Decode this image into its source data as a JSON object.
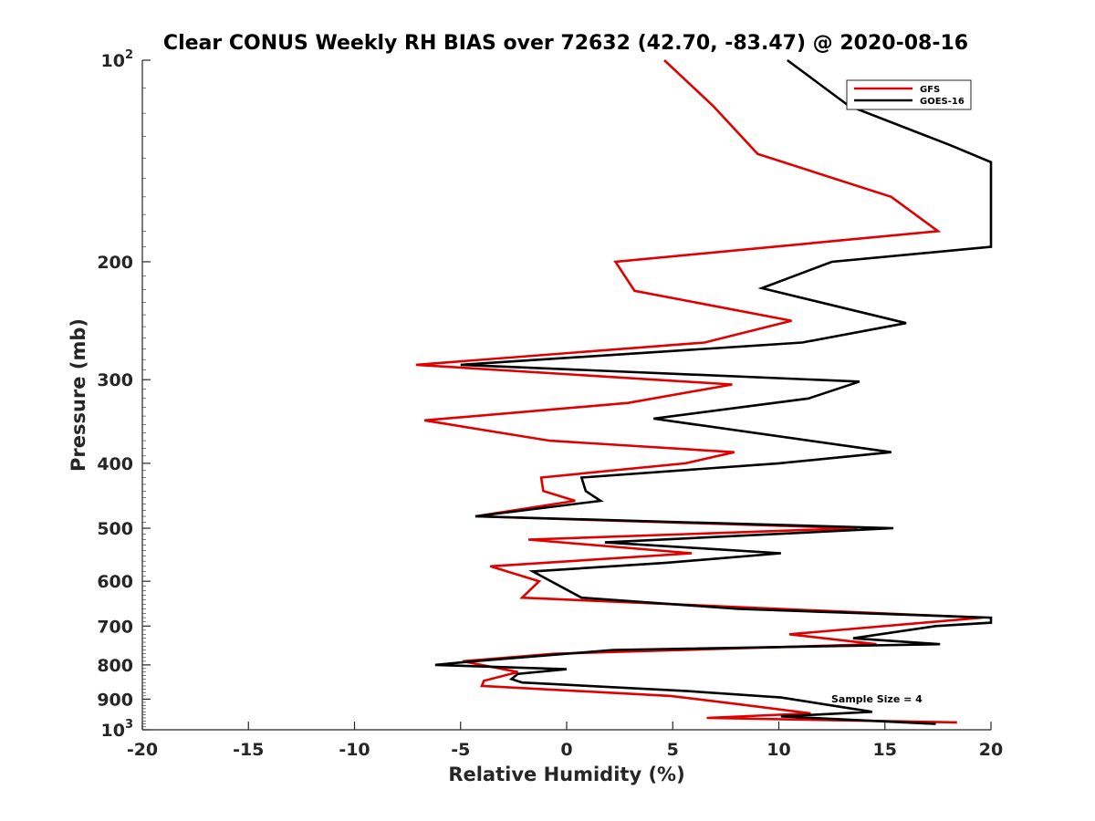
{
  "chart_data": {
    "type": "line",
    "title": "Clear CONUS Weekly RH BIAS over 72632 (42.70, -83.47) @ 2020-08-16",
    "xlabel": "Relative Humidity (%)",
    "ylabel": "Pressure (mb)",
    "xlim": [
      -20,
      20
    ],
    "ylim": [
      100,
      1000
    ],
    "yscale": "log",
    "y_reversed": true,
    "grid": false,
    "legend_position": "top-right",
    "x_ticks": [
      "-20",
      "-15",
      "-10",
      "-5",
      "0",
      "5",
      "10",
      "15",
      "20"
    ],
    "y_ticks": [
      {
        "value": 100,
        "base": "10",
        "exp": "2"
      },
      {
        "value": 200,
        "label": "200"
      },
      {
        "value": 300,
        "label": "300"
      },
      {
        "value": 400,
        "label": "400"
      },
      {
        "value": 500,
        "label": "500"
      },
      {
        "value": 600,
        "label": "600"
      },
      {
        "value": 700,
        "label": "700"
      },
      {
        "value": 800,
        "label": "800"
      },
      {
        "value": 900,
        "label": "900"
      },
      {
        "value": 1000,
        "base": "10",
        "exp": "3"
      }
    ],
    "annotation": "Sample Size = 4",
    "series": [
      {
        "name": "GFS",
        "color": "#e00000",
        "points": [
          {
            "x": 4.6,
            "y": 100
          },
          {
            "x": 6.9,
            "y": 117
          },
          {
            "x": 9.0,
            "y": 138
          },
          {
            "x": 15.3,
            "y": 160
          },
          {
            "x": 17.5,
            "y": 180
          },
          {
            "x": 2.3,
            "y": 200
          },
          {
            "x": 3.2,
            "y": 221
          },
          {
            "x": 10.6,
            "y": 245
          },
          {
            "x": 6.5,
            "y": 264
          },
          {
            "x": -7.1,
            "y": 285
          },
          {
            "x": 7.8,
            "y": 305
          },
          {
            "x": 2.9,
            "y": 325
          },
          {
            "x": -6.7,
            "y": 345
          },
          {
            "x": -0.8,
            "y": 370
          },
          {
            "x": 7.9,
            "y": 385
          },
          {
            "x": 5.6,
            "y": 400
          },
          {
            "x": -1.2,
            "y": 420
          },
          {
            "x": -1.1,
            "y": 440
          },
          {
            "x": 0.4,
            "y": 455
          },
          {
            "x": -4.3,
            "y": 480
          },
          {
            "x": 13.7,
            "y": 500
          },
          {
            "x": -1.8,
            "y": 520
          },
          {
            "x": 5.9,
            "y": 545
          },
          {
            "x": -3.6,
            "y": 570
          },
          {
            "x": -1.3,
            "y": 600
          },
          {
            "x": -2.1,
            "y": 635
          },
          {
            "x": 19.6,
            "y": 680
          },
          {
            "x": 10.5,
            "y": 720
          },
          {
            "x": 14.6,
            "y": 745
          },
          {
            "x": -0.6,
            "y": 770
          },
          {
            "x": -4.9,
            "y": 790
          },
          {
            "x": -2.3,
            "y": 820
          },
          {
            "x": -3.9,
            "y": 845
          },
          {
            "x": -4.0,
            "y": 860
          },
          {
            "x": 4.9,
            "y": 890
          },
          {
            "x": 8.0,
            "y": 915
          },
          {
            "x": 11.5,
            "y": 945
          },
          {
            "x": 6.6,
            "y": 960
          },
          {
            "x": 18.4,
            "y": 975
          }
        ]
      },
      {
        "name": "GOES-16",
        "color": "#000000",
        "points": [
          {
            "x": 10.4,
            "y": 100
          },
          {
            "x": 13.3,
            "y": 117
          },
          {
            "x": 18.1,
            "y": 134
          },
          {
            "x": 20.0,
            "y": 142
          },
          {
            "x": 20.0,
            "y": 190
          },
          {
            "x": 12.5,
            "y": 200
          },
          {
            "x": 9.2,
            "y": 219
          },
          {
            "x": 16.0,
            "y": 247
          },
          {
            "x": 11.1,
            "y": 264
          },
          {
            "x": -5.0,
            "y": 285
          },
          {
            "x": 13.8,
            "y": 302
          },
          {
            "x": 11.4,
            "y": 320
          },
          {
            "x": 4.1,
            "y": 343
          },
          {
            "x": 15.3,
            "y": 385
          },
          {
            "x": 10.0,
            "y": 400
          },
          {
            "x": 0.7,
            "y": 420
          },
          {
            "x": 0.9,
            "y": 440
          },
          {
            "x": 1.6,
            "y": 455
          },
          {
            "x": -4.3,
            "y": 480
          },
          {
            "x": 15.4,
            "y": 500
          },
          {
            "x": 1.8,
            "y": 525
          },
          {
            "x": 10.1,
            "y": 545
          },
          {
            "x": 4.7,
            "y": 563
          },
          {
            "x": -1.6,
            "y": 580
          },
          {
            "x": 0.7,
            "y": 635
          },
          {
            "x": 8.1,
            "y": 660
          },
          {
            "x": 20.0,
            "y": 680
          },
          {
            "x": 20.0,
            "y": 692
          },
          {
            "x": 17.4,
            "y": 700
          },
          {
            "x": 13.5,
            "y": 730
          },
          {
            "x": 17.6,
            "y": 745
          },
          {
            "x": 2.2,
            "y": 760
          },
          {
            "x": -4.4,
            "y": 790
          },
          {
            "x": -6.2,
            "y": 800
          },
          {
            "x": 0.0,
            "y": 812
          },
          {
            "x": -2.3,
            "y": 825
          },
          {
            "x": -2.6,
            "y": 840
          },
          {
            "x": -2.1,
            "y": 850
          },
          {
            "x": 5.6,
            "y": 875
          },
          {
            "x": 10.1,
            "y": 895
          },
          {
            "x": 14.4,
            "y": 940
          },
          {
            "x": 10.1,
            "y": 955
          },
          {
            "x": 17.4,
            "y": 980
          }
        ]
      }
    ]
  }
}
